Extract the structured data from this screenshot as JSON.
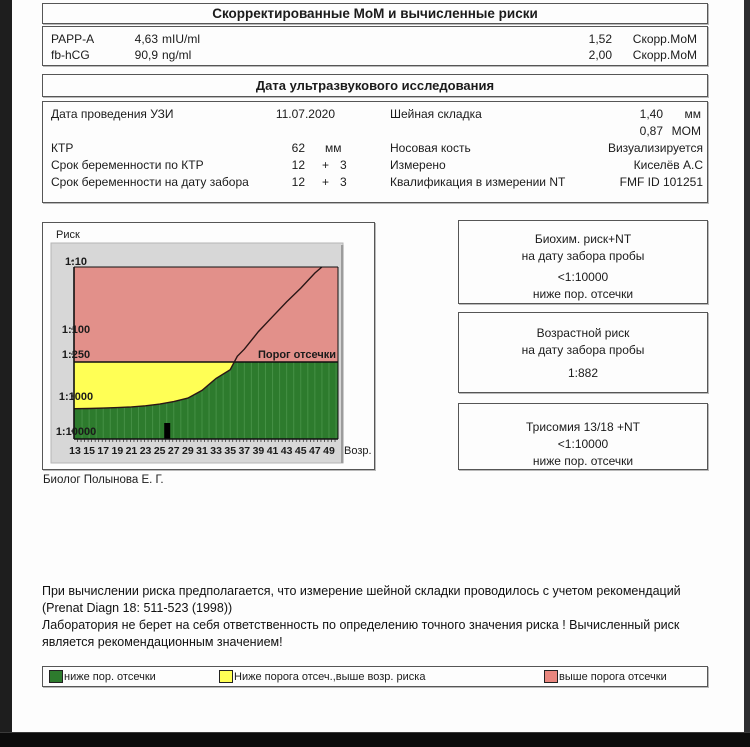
{
  "title": "Скорректированные МоМ и вычисленные риски",
  "mom_table": {
    "rows": [
      {
        "name": "PAPP-A",
        "value": "4,63",
        "unit": "mIU/ml",
        "corrected": "1,52",
        "corrected_label": "Скорр.МоМ"
      },
      {
        "name": "fb-hCG",
        "value": "90,9",
        "unit": "ng/ml",
        "corrected": "2,00",
        "corrected_label": "Скорр.МоМ"
      }
    ]
  },
  "ultrasound": {
    "header": "Дата ультразвукового исследования",
    "rows": [
      {
        "label": "Дата проведения УЗИ",
        "value": "11.07.2020",
        "label2": "Шейная складка",
        "value2": "1,40",
        "unit2": "мм"
      },
      {
        "label": "",
        "value": "",
        "label2": "",
        "value2": "0,87",
        "unit2": "МОМ"
      },
      {
        "label": "КТР",
        "value": "62",
        "unit": "мм",
        "label2": "Носовая кость",
        "value2": "Визуализируется"
      },
      {
        "label": "Срок беременности по КТР",
        "value": "12",
        "plus": "+",
        "value_b": "3",
        "label2": "Измерено",
        "value2": "Киселёв А.С"
      },
      {
        "label": "Срок беременности на дату забора",
        "value": "12",
        "plus": "+",
        "value_b": "3",
        "label2": "Квалификация в измерении NT",
        "value2": "FMF ID 101251"
      }
    ]
  },
  "risk_boxes": [
    {
      "line1": "Биохим. риск+NT",
      "line2": "на дату забора пробы",
      "value": "<1:10000",
      "status": "ниже пор. отсечки"
    },
    {
      "line1": "Возрастной риск",
      "line2": "на дату забора пробы",
      "value": "1:882",
      "status": ""
    },
    {
      "line1": "Трисомия 13/18 +NT",
      "line2": "",
      "value": "<1:10000",
      "status": "ниже пор. отсечки"
    }
  ],
  "signature": "Биолог Полынова Е. Г.",
  "notes": {
    "lines": [
      "При вычислении риска предполагается, что измерение шейной складки проводилось с учетом рекомендаций",
      "(Prenat Diagn 18: 511-523 (1998))",
      "Лаборатория не берет на себя ответственность по определению точного значения риска ! Вычисленный риск",
      "является рекомендационным значением!"
    ]
  },
  "legend": {
    "items": [
      {
        "color": "#2d7b2d",
        "label": "ниже пор. отсечки"
      },
      {
        "color": "#ffff55",
        "label": "Ниже порога отсеч.,выше возр. риска"
      },
      {
        "color": "#e8867e",
        "label": "выше порога отсечки"
      }
    ]
  },
  "chart_data": {
    "type": "area",
    "title": "Риск",
    "ylabel": "Риск",
    "xlabel": "Возр.",
    "y_axis_scale": "log (risk 1:N, 1:10 top to 1:10000 bottom)",
    "y_ticks": [
      "1:10",
      "1:100",
      "1:250",
      "1:1000",
      "1:10000"
    ],
    "x_ticks": [
      13,
      15,
      17,
      19,
      21,
      23,
      25,
      27,
      29,
      31,
      33,
      35,
      37,
      39,
      41,
      43,
      45,
      47,
      49
    ],
    "x_range": [
      13,
      50
    ],
    "grid": false,
    "threshold": {
      "risk": "1:250",
      "label": "Порог отсечки"
    },
    "curve_age_vs_risk_denominator": [
      [
        13,
        2300
      ],
      [
        15,
        2280
      ],
      [
        17,
        2220
      ],
      [
        19,
        2150
      ],
      [
        21,
        2050
      ],
      [
        23,
        1900
      ],
      [
        25,
        1700
      ],
      [
        27,
        1450
      ],
      [
        29,
        1150
      ],
      [
        31,
        830
      ],
      [
        33,
        560
      ],
      [
        35,
        420
      ],
      [
        36,
        270
      ],
      [
        37,
        210
      ],
      [
        39,
        110
      ],
      [
        41,
        66
      ],
      [
        43,
        40
      ],
      [
        45,
        25
      ],
      [
        47,
        15
      ],
      [
        48,
        12
      ]
    ],
    "patient_age_marker": 26,
    "zones": {
      "red_above_threshold": "выше порога отсечки",
      "yellow_between_curve_and_threshold": "Ниже порога отсеч.,выше возр. риска",
      "green_below": "ниже пор. отсечки"
    },
    "colors": {
      "red": "#e2908a",
      "yellow": "#ffff55",
      "green": "#2d7b2d",
      "hatch": "#459045",
      "panel": "#d7d7d7",
      "curve": "#2a1616"
    }
  }
}
